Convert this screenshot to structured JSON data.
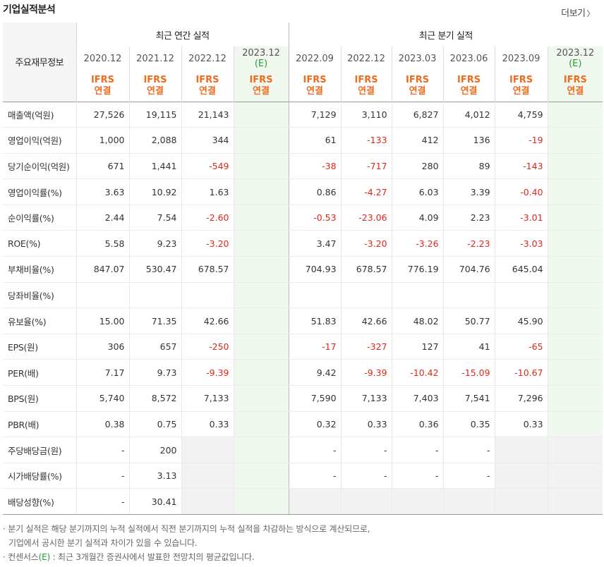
{
  "header": {
    "title": "기업실적분석",
    "more_label": "더보기",
    "more_icon": "chevron-right-icon"
  },
  "table": {
    "label_header": "주요재무정보",
    "annual_group": "최근 연간 실적",
    "quarter_group": "최근 분기 실적",
    "annual_periods": [
      "2020.12",
      "2021.12",
      "2022.12"
    ],
    "annual_estimate": {
      "period": "2023.12",
      "flag": "(E)"
    },
    "quarter_periods": [
      "2022.09",
      "2022.12",
      "2023.03",
      "2023.06",
      "2023.09"
    ],
    "quarter_estimate": {
      "period": "2023.12",
      "flag": "(E)"
    },
    "basis_top": "IFRS",
    "basis_bottom": "연결",
    "rows": [
      {
        "label": "매출액(억원)",
        "annual": [
          "27,526",
          "19,115",
          "21,143"
        ],
        "quarter": [
          "7,129",
          "3,110",
          "6,827",
          "4,012",
          "4,759"
        ]
      },
      {
        "label": "영업이익(억원)",
        "annual": [
          "1,000",
          "2,088",
          "344"
        ],
        "quarter": [
          "61",
          "-133",
          "412",
          "136",
          "-19"
        ]
      },
      {
        "label": "당기순이익(억원)",
        "annual": [
          "671",
          "1,441",
          "-549"
        ],
        "quarter": [
          "-38",
          "-717",
          "280",
          "89",
          "-143"
        ]
      },
      {
        "label": "영업이익률(%)",
        "annual": [
          "3.63",
          "10.92",
          "1.63"
        ],
        "quarter": [
          "0.86",
          "-4.27",
          "6.03",
          "3.39",
          "-0.40"
        ]
      },
      {
        "label": "순이익률(%)",
        "annual": [
          "2.44",
          "7.54",
          "-2.60"
        ],
        "quarter": [
          "-0.53",
          "-23.06",
          "4.09",
          "2.23",
          "-3.01"
        ]
      },
      {
        "label": "ROE(%)",
        "annual": [
          "5.58",
          "9.23",
          "-3.20"
        ],
        "quarter": [
          "3.47",
          "-3.20",
          "-3.26",
          "-2.23",
          "-3.03"
        ]
      },
      {
        "label": "부채비율(%)",
        "annual": [
          "847.07",
          "530.47",
          "678.57"
        ],
        "quarter": [
          "704.93",
          "678.57",
          "776.19",
          "704.76",
          "645.04"
        ]
      },
      {
        "label": "당좌비율(%)",
        "annual": [
          "",
          "",
          ""
        ],
        "quarter": [
          "",
          "",
          "",
          "",
          ""
        ]
      },
      {
        "label": "유보율(%)",
        "annual": [
          "15.00",
          "71.35",
          "42.66"
        ],
        "quarter": [
          "51.83",
          "42.66",
          "48.02",
          "50.77",
          "45.90"
        ]
      },
      {
        "label": "EPS(원)",
        "annual": [
          "306",
          "657",
          "-250"
        ],
        "quarter": [
          "-17",
          "-327",
          "127",
          "41",
          "-65"
        ]
      },
      {
        "label": "PER(배)",
        "annual": [
          "7.17",
          "9.73",
          "-9.39"
        ],
        "quarter": [
          "9.42",
          "-9.39",
          "-10.42",
          "-15.09",
          "-10.67"
        ]
      },
      {
        "label": "BPS(원)",
        "annual": [
          "5,740",
          "8,572",
          "7,133"
        ],
        "quarter": [
          "7,590",
          "7,133",
          "7,403",
          "7,541",
          "7,296"
        ]
      },
      {
        "label": "PBR(배)",
        "annual": [
          "0.38",
          "0.75",
          "0.33"
        ],
        "quarter": [
          "0.32",
          "0.33",
          "0.36",
          "0.35",
          "0.33"
        ]
      },
      {
        "label": "주당배당금(원)",
        "annual": [
          "-",
          "200",
          null
        ],
        "quarter": [
          "-",
          "-",
          "-",
          "-",
          null
        ]
      },
      {
        "label": "시가배당률(%)",
        "annual": [
          "-",
          "3.13",
          null
        ],
        "quarter": [
          "-",
          "-",
          "-",
          "-",
          null
        ]
      },
      {
        "label": "배당성향(%)",
        "annual": [
          "-",
          "30.41",
          null
        ],
        "quarter": [
          null,
          null,
          null,
          null,
          null
        ]
      }
    ]
  },
  "notes": {
    "line1": "· 분기 실적은 해당 분기까지의 누적 실적에서 직전 분기까지의 누적 실적을 차감하는 방식으로 계산되므로,",
    "line2": "기업에서 공시한 분기 실적과 차이가 있을 수 있습니다.",
    "line3_pre": "· 컨센서스",
    "line3_e": "(E)",
    "line3_post": " : 최근 3개월간 증권사에서 발표한 전망치의 평균값입니다."
  },
  "colors": {
    "ifrs": "#f26a1b",
    "negative": "#e0271a",
    "estimate_bg": "#f0f7ee",
    "estimate_flag": "#2a9a3a"
  }
}
